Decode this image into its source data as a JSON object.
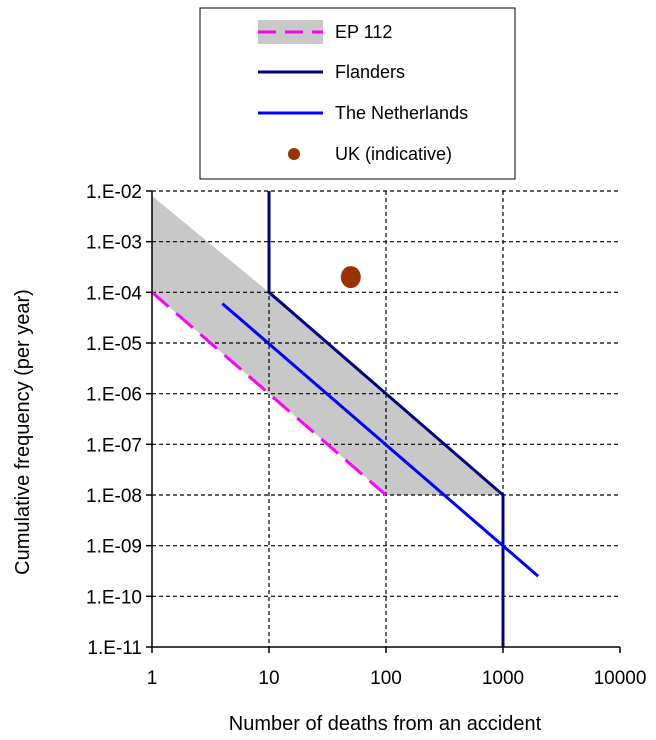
{
  "chart_data": {
    "type": "line",
    "xlabel": "Number of deaths from an accident",
    "ylabel": "Cumulative frequency (per year)",
    "x_scale": "log",
    "y_scale": "log",
    "xlim": [
      1,
      10000
    ],
    "ylim": [
      1e-11,
      0.01
    ],
    "x_tick_labels": [
      "1",
      "10",
      "100",
      "1000",
      "10000"
    ],
    "x_tick_values": [
      1,
      10,
      100,
      1000,
      10000
    ],
    "y_tick_labels": [
      "1.E-02",
      "1.E-03",
      "1.E-04",
      "1.E-05",
      "1.E-06",
      "1.E-07",
      "1.E-08",
      "1.E-09",
      "1.E-10",
      "1.E-11"
    ],
    "y_tick_values": [
      0.01,
      0.001,
      0.0001,
      1e-05,
      1e-06,
      1e-07,
      1e-08,
      1e-09,
      1e-10,
      1e-11
    ],
    "grid": "dashed lines at x = 10, 100, 1000 and at every y decade",
    "legend_position": "top, above plot",
    "legend": [
      {
        "label": "EP 112",
        "kind": "band",
        "color": "#c8c8c8"
      },
      {
        "label": "EP 112",
        "kind": "dashed-line",
        "color": "#ff00ff"
      },
      {
        "label": "Flanders",
        "kind": "line",
        "color": "#000080"
      },
      {
        "label": "The Netherlands",
        "kind": "line",
        "color": "#0000ff"
      },
      {
        "label": "UK (indicative)",
        "kind": "marker",
        "color": "#993300"
      }
    ],
    "series": [
      {
        "name": "EP 112",
        "kind": "band",
        "color": "#c8c8c8",
        "x": [
          1,
          1,
          10,
          1000,
          100,
          1
        ],
        "y": [
          0.0001,
          0.008,
          0.0001,
          1e-08,
          1e-08,
          0.0001
        ]
      },
      {
        "name": "EP 112",
        "kind": "dashed-line",
        "color": "#ff00ff",
        "x": [
          1,
          100
        ],
        "y": [
          0.0001,
          1e-08
        ]
      },
      {
        "name": "Flanders",
        "kind": "line",
        "color": "#000080",
        "x": [
          10,
          10,
          1000,
          1000
        ],
        "y": [
          0.01,
          0.0001,
          1e-08,
          1e-11
        ]
      },
      {
        "name": "The Netherlands",
        "kind": "line",
        "color": "#0000ff",
        "x": [
          4,
          2000
        ],
        "y": [
          6e-05,
          2.5e-10
        ]
      },
      {
        "name": "UK (indicative)",
        "kind": "marker",
        "color": "#993300",
        "x": [
          50
        ],
        "y": [
          0.0002
        ]
      }
    ]
  }
}
